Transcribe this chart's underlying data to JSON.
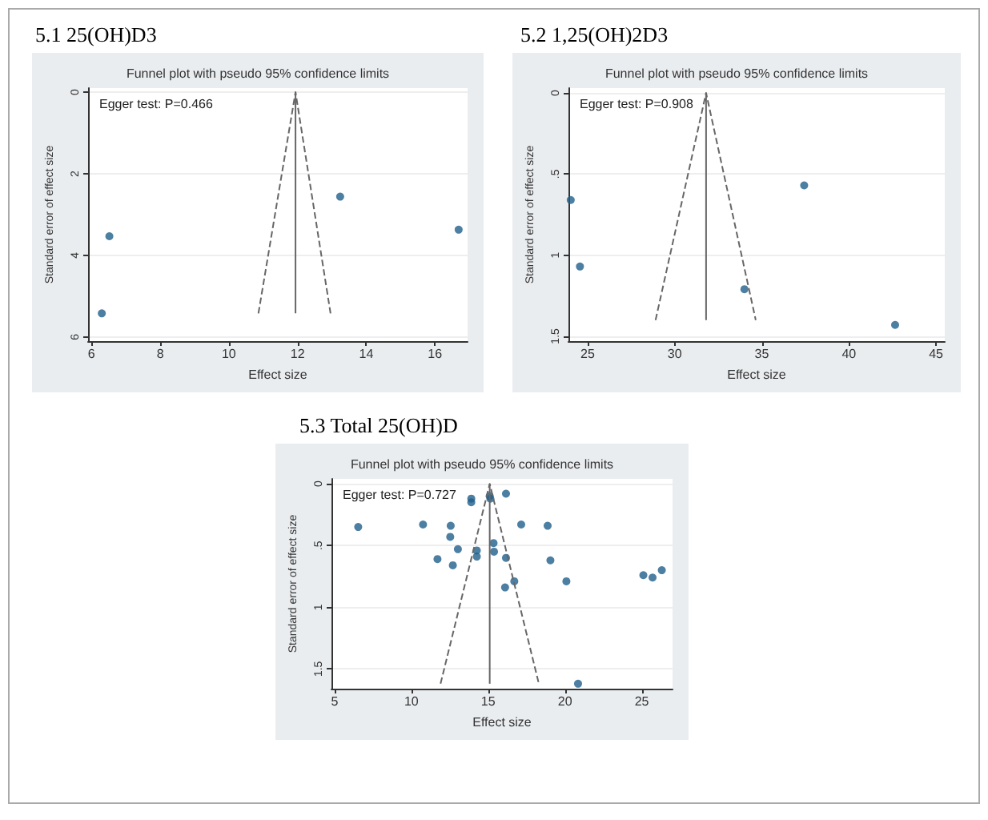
{
  "chart_data": [
    {
      "type": "scatter",
      "title": "5.1 25(OH)D3",
      "subtitle": "Funnel plot with pseudo 95% confidence limits",
      "xlabel": "Effect size",
      "ylabel": "Standard error of effect size",
      "annotations": [
        "Egger test: P=0.466"
      ],
      "xlim": [
        5.9,
        16.95
      ],
      "xticks": [
        6,
        8,
        10,
        12,
        14,
        16
      ],
      "ylim": [
        6.1,
        -0.1
      ],
      "yticks": [
        0,
        2,
        4,
        6
      ],
      "grid": "y",
      "series": [
        {
          "marker": "circle",
          "color": "#1f5f8b",
          "x": [
            6.52,
            6.3,
            13.24,
            16.69
          ],
          "values": [
            3.53,
            5.42,
            2.56,
            3.37
          ]
        },
        {
          "type": "line",
          "line_style": "dashed",
          "color": "#666666",
          "x": [
            10.86,
            11.94,
            12.96
          ],
          "values": [
            5.42,
            0,
            5.42
          ]
        },
        {
          "type": "line",
          "line_style": "solid",
          "color": "#666666",
          "x": [
            11.94,
            11.94
          ],
          "values": [
            0,
            5.42
          ]
        }
      ]
    },
    {
      "type": "scatter",
      "title": "5.2 1,25(OH)2D3",
      "subtitle": "Funnel plot with pseudo 95% confidence limits",
      "xlabel": "Effect size",
      "ylabel": "Standard error of effect size",
      "annotations": [
        "Egger test: P=0.908"
      ],
      "xlim": [
        23.9,
        45.5
      ],
      "xticks": [
        25,
        30,
        35,
        40,
        45
      ],
      "ylim": [
        1.53,
        -0.03
      ],
      "yticks": [
        0,
        {
          "value": 0.5,
          "label": ".5"
        },
        1,
        1.5
      ],
      "grid": "y",
      "series": [
        {
          "marker": "circle",
          "color": "#1f5f8b",
          "x": [
            24.03,
            24.56,
            34.0,
            37.43,
            42.65
          ],
          "values": [
            0.66,
            1.07,
            1.21,
            0.57,
            1.43
          ]
        },
        {
          "type": "line",
          "line_style": "dashed",
          "color": "#666666",
          "x": [
            28.9,
            31.8,
            34.65
          ],
          "values": [
            1.4,
            0,
            1.4
          ]
        },
        {
          "type": "line",
          "line_style": "solid",
          "color": "#666666",
          "x": [
            31.8,
            31.8
          ],
          "values": [
            0,
            1.4
          ]
        }
      ]
    },
    {
      "type": "scatter",
      "title": "5.3 Total 25(OH)D",
      "subtitle": "Funnel plot with pseudo 95% confidence limits",
      "xlabel": "Effect size",
      "ylabel": "Standard error of effect size",
      "annotations": [
        "Egger test: P=0.727"
      ],
      "xlim": [
        4.8,
        27
      ],
      "xticks": [
        5,
        10,
        15,
        20,
        25
      ],
      "ylim": [
        1.66,
        -0.04
      ],
      "yticks": [
        0,
        {
          "value": 0.5,
          "label": ".5"
        },
        1,
        1.5
      ],
      "grid": "y",
      "series": [
        {
          "marker": "circle",
          "color": "#1f5f8b",
          "x": [
            6.54,
            10.76,
            12.56,
            12.53,
            13.03,
            11.7,
            12.7,
            13.9,
            13.9,
            14.26,
            14.26,
            15.14,
            15.1,
            16.16,
            15.35,
            15.38,
            16.16,
            16.7,
            16.1,
            17.15,
            18.87,
            19.05,
            20.09,
            20.85,
            25.1,
            25.7,
            26.3
          ],
          "values": [
            0.35,
            0.33,
            0.34,
            0.43,
            0.53,
            0.61,
            0.66,
            0.12,
            0.15,
            0.54,
            0.59,
            0.12,
            0.1,
            0.08,
            0.48,
            0.55,
            0.6,
            0.79,
            0.84,
            0.33,
            0.34,
            0.62,
            0.79,
            1.62,
            0.74,
            0.76,
            0.7
          ]
        },
        {
          "type": "line",
          "line_style": "dashed",
          "color": "#666666",
          "x": [
            11.9,
            15.1,
            18.3
          ],
          "values": [
            1.62,
            0,
            1.62
          ]
        },
        {
          "type": "line",
          "line_style": "solid",
          "color": "#666666",
          "x": [
            15.1,
            15.1
          ],
          "values": [
            0,
            1.62
          ]
        }
      ]
    }
  ]
}
